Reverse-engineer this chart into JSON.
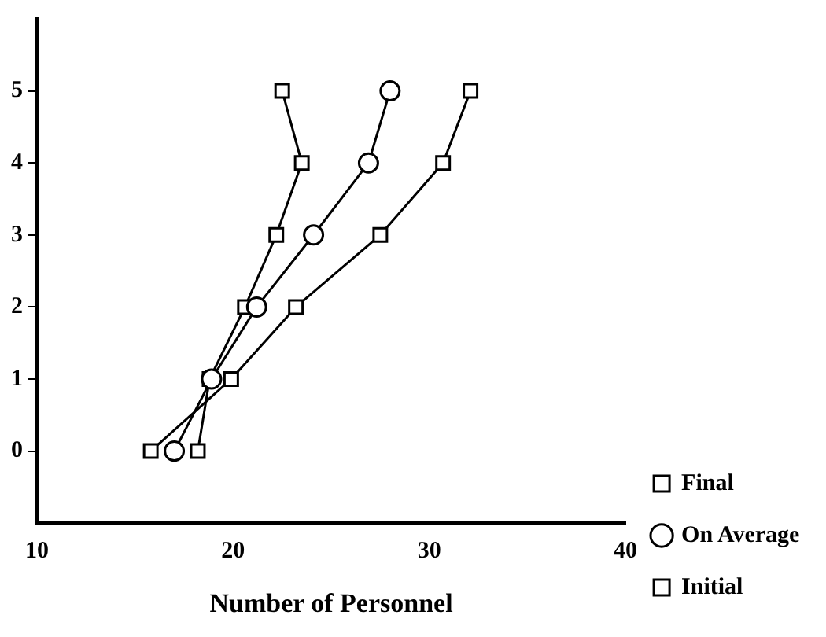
{
  "chart_data": {
    "type": "line",
    "xlabel": "Number of Personnel",
    "xlim": [
      10,
      40
    ],
    "xticks": [
      10,
      20,
      30,
      40
    ],
    "ylim": [
      -1,
      6
    ],
    "yticks": [
      0,
      1,
      2,
      3,
      4,
      5
    ],
    "grid": false,
    "legend": "bottom right",
    "line_style": "solid",
    "series": [
      {
        "name": "Final",
        "color": "#000000",
        "marker": "square",
        "x": [
          15.8,
          19.9,
          23.2,
          27.5,
          30.7,
          32.1
        ],
        "values": [
          0,
          1,
          2,
          3,
          4,
          5
        ]
      },
      {
        "name": "On Average",
        "color": "#000000",
        "marker": "circle",
        "x": [
          17.0,
          18.9,
          21.2,
          24.1,
          26.9,
          28.0
        ],
        "values": [
          0,
          1,
          2,
          3,
          4,
          5
        ]
      },
      {
        "name": "Initial",
        "color": "#000000",
        "marker": "square",
        "x": [
          18.2,
          18.8,
          20.6,
          22.2,
          23.5,
          22.5
        ],
        "values": [
          0,
          1,
          2,
          3,
          4,
          5
        ]
      }
    ]
  }
}
